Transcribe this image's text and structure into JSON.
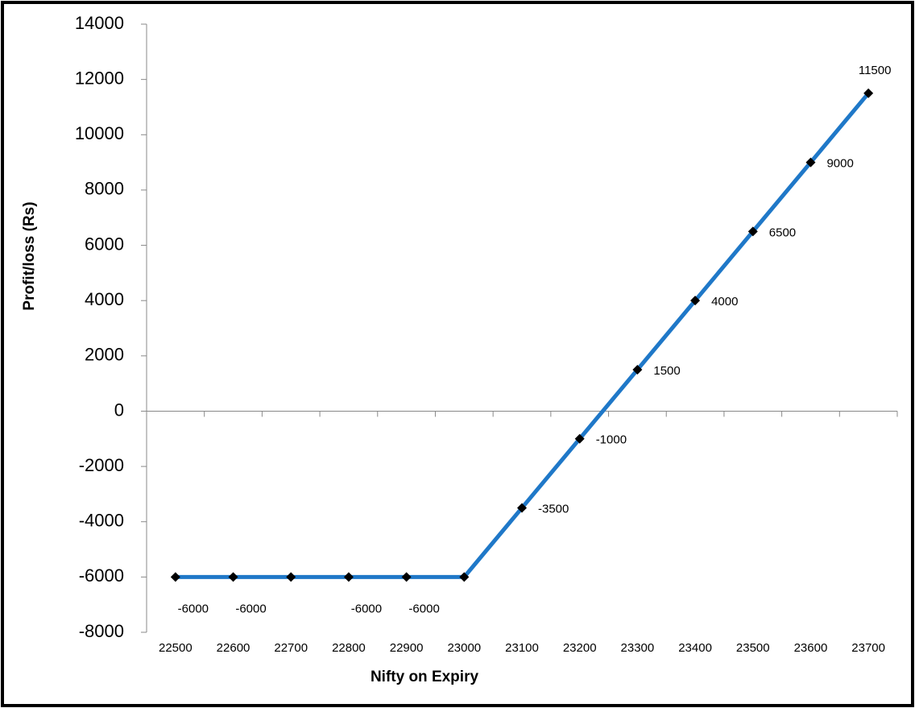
{
  "chart_data": {
    "type": "line",
    "x_label": "Nifty on Expiry",
    "y_label": "Profit/loss (Rs)",
    "categories": [
      "22500",
      "22600",
      "22700",
      "22800",
      "22900",
      "23000",
      "23100",
      "23200",
      "23300",
      "23400",
      "23500",
      "23600",
      "23700"
    ],
    "series": [
      {
        "color": "#1f78c8",
        "marker_color": "#000000",
        "values": [
          -6000,
          -6000,
          -6000,
          -6000,
          -6000,
          -6000,
          -3500,
          -1000,
          1500,
          4000,
          6500,
          9000,
          11500
        ],
        "value_labels": [
          "-6000",
          "-6000",
          null,
          "-6000",
          "-6000",
          null,
          "-3500",
          "-1000",
          "1500",
          "4000",
          "6500",
          "9000",
          "11500"
        ]
      }
    ],
    "ylim": [
      -8000,
      14000
    ],
    "yticks": [
      -8000,
      -6000,
      -4000,
      -2000,
      0,
      2000,
      4000,
      6000,
      8000,
      10000,
      12000,
      14000
    ]
  }
}
